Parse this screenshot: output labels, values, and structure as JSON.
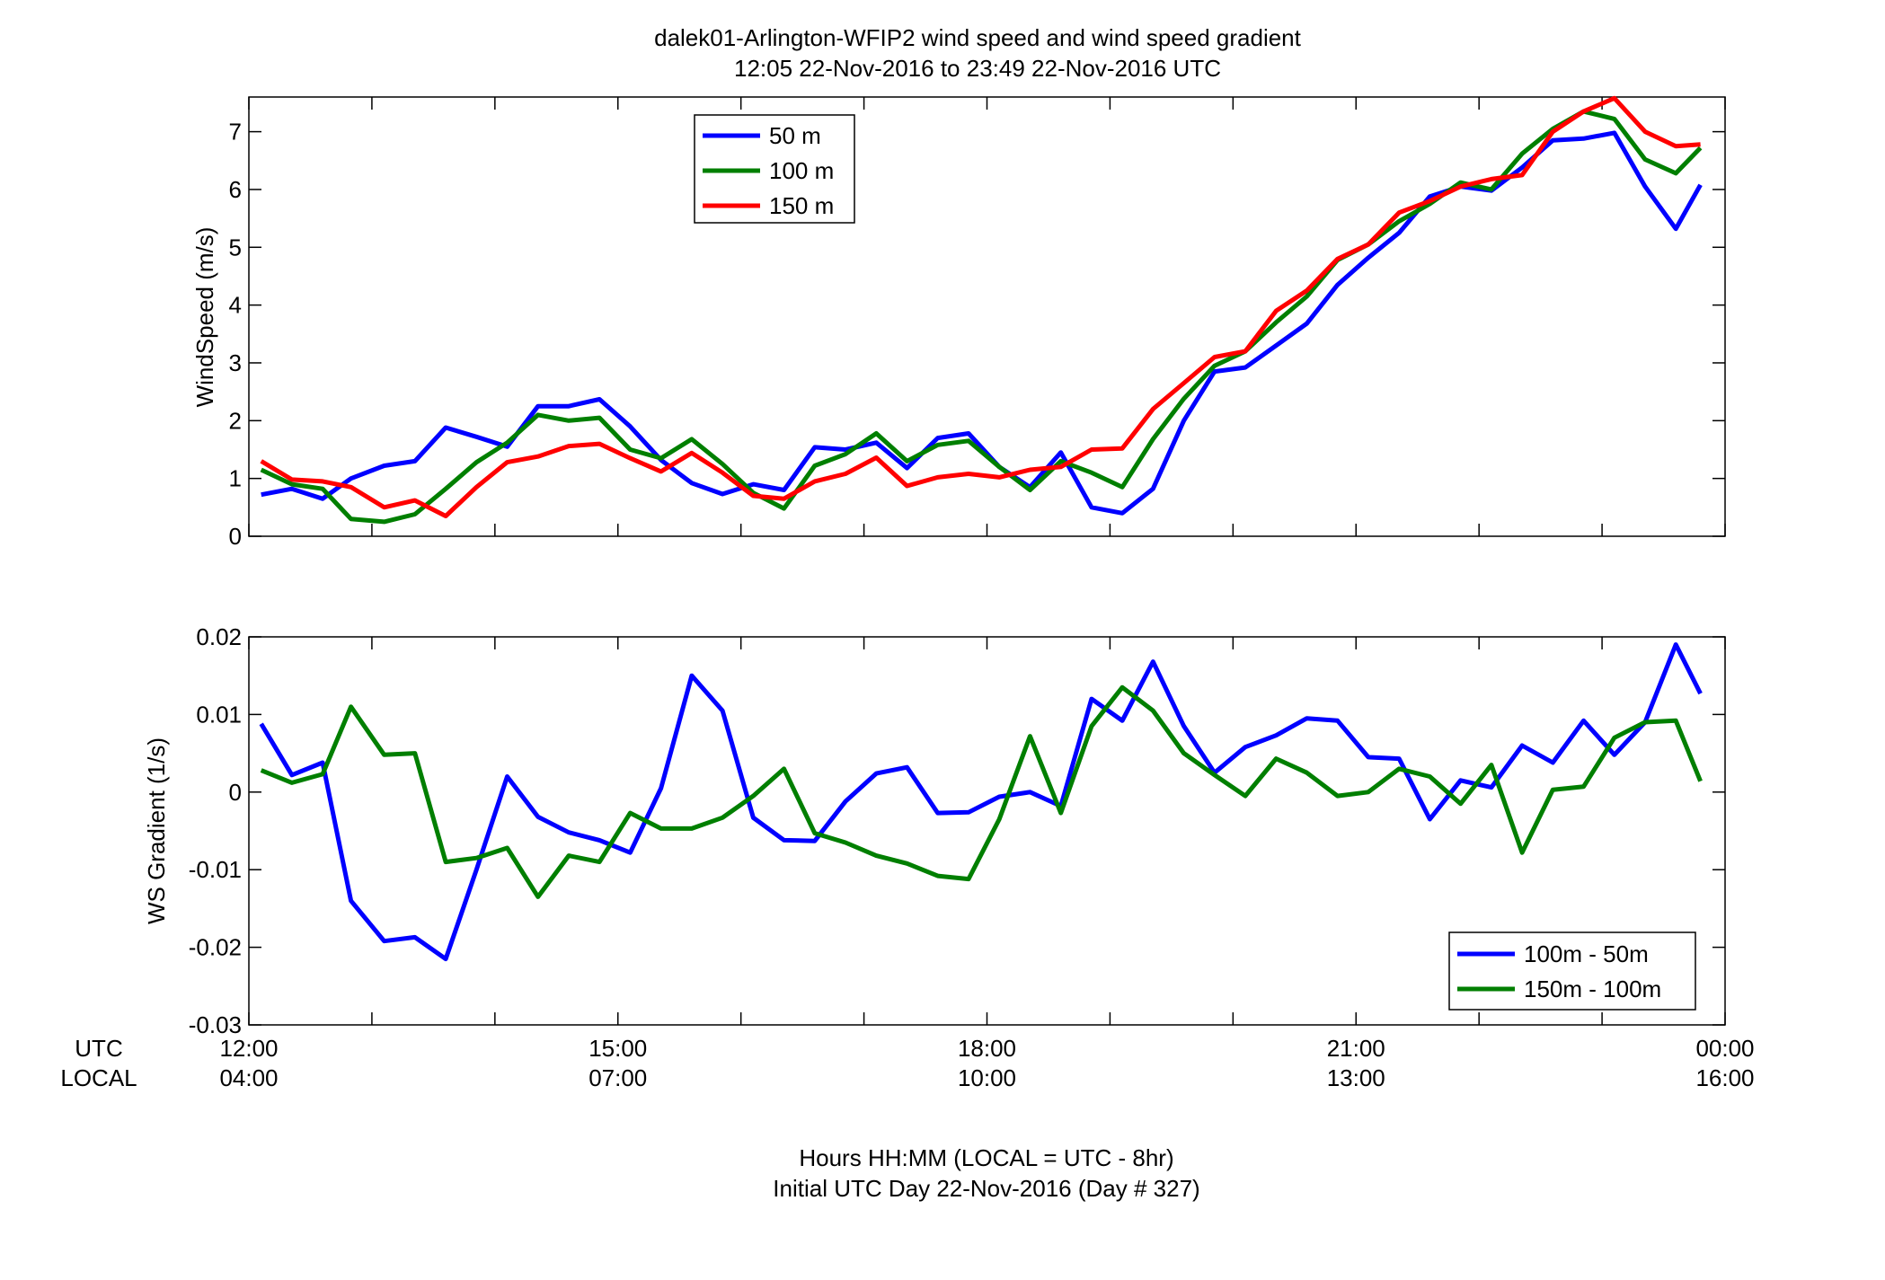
{
  "title": {
    "line1": "dalek01-Arlington-WFIP2  wind speed and wind speed gradient",
    "line2": "12:05 22-Nov-2016 to 23:49 22-Nov-2016  UTC"
  },
  "xaxis": {
    "row_labels": [
      "UTC",
      "LOCAL"
    ],
    "utc_ticks": [
      "12:00",
      "15:00",
      "18:00",
      "21:00",
      "00:00"
    ],
    "local_ticks": [
      "04:00",
      "07:00",
      "10:00",
      "13:00",
      "16:00"
    ],
    "xlabel_line1": "Hours HH:MM  (LOCAL = UTC - 8hr)",
    "xlabel_line2": "Initial UTC Day 22-Nov-2016 (Day # 327)"
  },
  "colors": {
    "blue": "#0000ff",
    "green": "#007f00",
    "red": "#ff0000"
  },
  "chart_data": [
    {
      "type": "line",
      "ylabel": "WindSpeed (m/s)",
      "xlim": [
        12,
        24
      ],
      "ylim": [
        0,
        7.6
      ],
      "yticks": [
        0,
        1,
        2,
        3,
        4,
        5,
        6,
        7
      ],
      "grid": false,
      "legend_position": "top-left",
      "x": [
        12.1,
        12.35,
        12.6,
        12.83,
        13.1,
        13.35,
        13.6,
        13.85,
        14.1,
        14.35,
        14.6,
        14.85,
        15.1,
        15.35,
        15.6,
        15.85,
        16.1,
        16.35,
        16.6,
        16.85,
        17.1,
        17.35,
        17.6,
        17.85,
        18.1,
        18.35,
        18.6,
        18.85,
        19.1,
        19.35,
        19.6,
        19.85,
        20.1,
        20.35,
        20.6,
        20.85,
        21.1,
        21.35,
        21.6,
        21.85,
        22.1,
        22.35,
        22.6,
        22.85,
        23.1,
        23.35,
        23.6,
        23.8
      ],
      "series": [
        {
          "name": "50 m",
          "color": "blue",
          "values": [
            0.72,
            0.82,
            0.65,
            1.0,
            1.22,
            1.3,
            1.88,
            1.72,
            1.55,
            2.25,
            2.25,
            2.37,
            1.9,
            1.32,
            0.92,
            0.73,
            0.9,
            0.8,
            1.54,
            1.5,
            1.62,
            1.18,
            1.7,
            1.78,
            1.2,
            0.85,
            1.45,
            0.5,
            0.4,
            0.82,
            2.0,
            2.85,
            2.92,
            3.3,
            3.68,
            4.35,
            4.82,
            5.25,
            5.88,
            6.05,
            5.98,
            6.38,
            6.85,
            6.88,
            6.98,
            6.05,
            5.32,
            6.08
          ]
        },
        {
          "name": "100 m",
          "color": "green",
          "values": [
            1.15,
            0.9,
            0.82,
            0.3,
            0.25,
            0.38,
            0.82,
            1.28,
            1.62,
            2.1,
            2.0,
            2.05,
            1.5,
            1.35,
            1.68,
            1.25,
            0.75,
            0.48,
            1.22,
            1.42,
            1.78,
            1.3,
            1.58,
            1.65,
            1.2,
            0.8,
            1.3,
            1.1,
            0.85,
            1.68,
            2.38,
            2.95,
            3.2,
            3.7,
            4.15,
            4.78,
            5.05,
            5.45,
            5.75,
            6.12,
            6.0,
            6.62,
            7.05,
            7.35,
            7.22,
            6.52,
            6.28,
            6.72
          ]
        },
        {
          "name": "150 m",
          "color": "red",
          "values": [
            1.3,
            0.98,
            0.95,
            0.85,
            0.5,
            0.62,
            0.35,
            0.85,
            1.28,
            1.38,
            1.56,
            1.6,
            1.35,
            1.12,
            1.44,
            1.1,
            0.7,
            0.65,
            0.95,
            1.08,
            1.36,
            0.87,
            1.02,
            1.08,
            1.02,
            1.15,
            1.2,
            1.5,
            1.52,
            2.2,
            2.65,
            3.1,
            3.2,
            3.9,
            4.25,
            4.8,
            5.05,
            5.6,
            5.8,
            6.05,
            6.18,
            6.25,
            7.0,
            7.35,
            7.58,
            7.0,
            6.75,
            6.78
          ]
        }
      ]
    },
    {
      "type": "line",
      "ylabel": "WS Gradient (1/s)",
      "xlim": [
        12,
        24
      ],
      "ylim": [
        -0.03,
        0.02
      ],
      "yticks": [
        -0.03,
        -0.02,
        -0.01,
        0,
        0.01,
        0.02
      ],
      "grid": false,
      "legend_position": "bottom-right",
      "x": [
        12.1,
        12.35,
        12.6,
        12.83,
        13.1,
        13.35,
        13.6,
        13.85,
        14.1,
        14.35,
        14.6,
        14.85,
        15.1,
        15.35,
        15.6,
        15.85,
        16.1,
        16.35,
        16.6,
        16.85,
        17.1,
        17.35,
        17.6,
        17.85,
        18.1,
        18.35,
        18.6,
        18.85,
        19.1,
        19.35,
        19.6,
        19.85,
        20.1,
        20.35,
        20.6,
        20.85,
        21.1,
        21.35,
        21.6,
        21.85,
        22.1,
        22.35,
        22.6,
        22.85,
        23.1,
        23.35,
        23.6,
        23.8
      ],
      "series": [
        {
          "name": "100m - 50m",
          "color": "blue",
          "values": [
            0.0088,
            0.0022,
            0.0038,
            -0.014,
            -0.0192,
            -0.0187,
            -0.0215,
            -0.01,
            0.002,
            -0.0032,
            -0.0052,
            -0.0062,
            -0.0078,
            0.0005,
            0.015,
            0.0105,
            -0.0033,
            -0.0062,
            -0.0063,
            -0.0012,
            0.0024,
            0.0032,
            -0.0027,
            -0.0026,
            -0.0006,
            0.0,
            -0.0018,
            0.012,
            0.0092,
            0.0168,
            0.0085,
            0.0025,
            0.0058,
            0.0073,
            0.0095,
            0.0092,
            0.0045,
            0.0043,
            -0.0035,
            0.0015,
            0.0006,
            0.006,
            0.0038,
            0.0092,
            0.0048,
            0.009,
            0.019,
            0.0127
          ]
        },
        {
          "name": "150m - 100m",
          "color": "green",
          "values": [
            0.0028,
            0.0012,
            0.0023,
            0.011,
            0.0048,
            0.005,
            -0.009,
            -0.0085,
            -0.0072,
            -0.0135,
            -0.0082,
            -0.009,
            -0.0027,
            -0.0047,
            -0.0047,
            -0.0033,
            -0.0005,
            0.003,
            -0.0053,
            -0.0065,
            -0.0082,
            -0.0092,
            -0.0108,
            -0.0112,
            -0.0035,
            0.0072,
            -0.0027,
            0.0085,
            0.0135,
            0.0105,
            0.005,
            0.0022,
            -0.0005,
            0.0043,
            0.0025,
            -0.0005,
            0.0,
            0.003,
            0.002,
            -0.0015,
            0.0035,
            -0.0078,
            0.0003,
            0.0007,
            0.007,
            0.009,
            0.0092,
            0.0014
          ]
        }
      ]
    }
  ]
}
